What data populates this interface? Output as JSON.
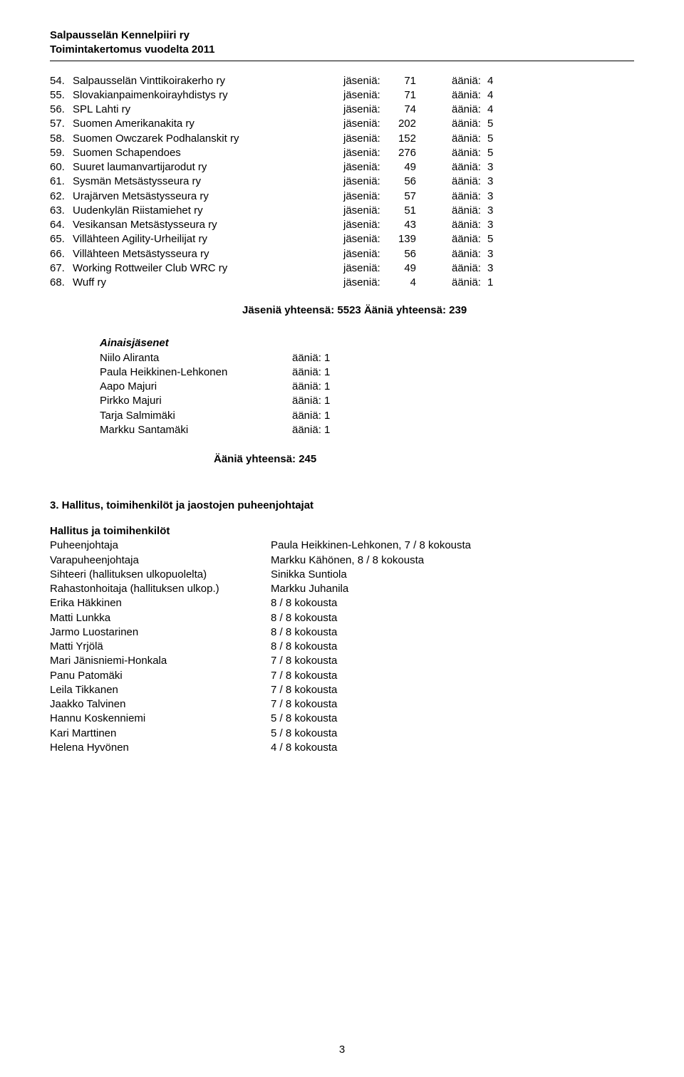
{
  "header": {
    "line1": "Salpausselän Kennelpiiri ry",
    "line2": "Toimintakertomus vuodelta 2011"
  },
  "labels": {
    "jasenia": "jäseniä:",
    "aania": "ääniä:"
  },
  "clubs": [
    {
      "num": "54.",
      "name": "Salpausselän Vinttikoirakerho ry",
      "jas": "71",
      "aan": "4"
    },
    {
      "num": "55.",
      "name": "Slovakianpaimenkoirayhdistys ry",
      "jas": "71",
      "aan": "4"
    },
    {
      "num": "56.",
      "name": "SPL Lahti ry",
      "jas": "74",
      "aan": "4"
    },
    {
      "num": "57.",
      "name": "Suomen Amerikanakita ry",
      "jas": "202",
      "aan": "5"
    },
    {
      "num": "58.",
      "name": "Suomen Owczarek Podhalanskit ry",
      "jas": "152",
      "aan": "5"
    },
    {
      "num": "59.",
      "name": "Suomen Schapendoes",
      "jas": "276",
      "aan": "5"
    },
    {
      "num": "60.",
      "name": "Suuret laumanvartijarodut ry",
      "jas": "49",
      "aan": "3"
    },
    {
      "num": "61.",
      "name": "Sysmän Metsästysseura ry",
      "jas": "56",
      "aan": "3"
    },
    {
      "num": "62.",
      "name": "Urajärven Metsästysseura ry",
      "jas": "57",
      "aan": "3"
    },
    {
      "num": "63.",
      "name": "Uudenkylän Riistamiehet ry",
      "jas": "51",
      "aan": "3"
    },
    {
      "num": "64.",
      "name": "Vesikansan Metsästysseura ry",
      "jas": "43",
      "aan": "3"
    },
    {
      "num": "65.",
      "name": "Villähteen Agility-Urheilijat ry",
      "jas": "139",
      "aan": "5"
    },
    {
      "num": "66.",
      "name": "Villähteen Metsästysseura ry",
      "jas": "56",
      "aan": "3"
    },
    {
      "num": "67.",
      "name": "Working Rottweiler Club WRC ry",
      "jas": "49",
      "aan": "3"
    },
    {
      "num": "68.",
      "name": "Wuff ry",
      "jas": "4",
      "aan": "1"
    }
  ],
  "totals_line": "Jäseniä yhteensä: 5523  Ääniä yhteensä: 239",
  "permanent_members": {
    "title": "Ainaisjäsenet",
    "rows": [
      {
        "name": "Niilo Aliranta",
        "votes": "ääniä: 1"
      },
      {
        "name": "Paula Heikkinen-Lehkonen",
        "votes": "ääniä: 1"
      },
      {
        "name": "Aapo Majuri",
        "votes": "ääniä: 1"
      },
      {
        "name": "Pirkko Majuri",
        "votes": "ääniä: 1"
      },
      {
        "name": "Tarja Salmimäki",
        "votes": "ääniä: 1"
      },
      {
        "name": "Markku Santamäki",
        "votes": "ääniä: 1"
      }
    ]
  },
  "votes_total": "Ääniä yhteensä: 245",
  "section3": {
    "heading": "3. Hallitus, toimihenkilöt ja jaostojen puheenjohtajat",
    "subheading": "Hallitus ja toimihenkilöt",
    "rows": [
      {
        "role": "Puheenjohtaja",
        "val": "Paula Heikkinen-Lehkonen, 7 / 8 kokousta"
      },
      {
        "role": "Varapuheenjohtaja",
        "val": "Markku Kähönen, 8 / 8 kokousta"
      },
      {
        "role": "Sihteeri (hallituksen ulkopuolelta)",
        "val": "Sinikka Suntiola"
      },
      {
        "role": "Rahastonhoitaja (hallituksen ulkop.)",
        "val": "Markku Juhanila"
      },
      {
        "role": "Erika Häkkinen",
        "val": "8 / 8 kokousta"
      },
      {
        "role": "Matti Lunkka",
        "val": "8 / 8 kokousta"
      },
      {
        "role": "Jarmo Luostarinen",
        "val": "8 / 8 kokousta"
      },
      {
        "role": "Matti Yrjölä",
        "val": "8 / 8 kokousta"
      },
      {
        "role": "Mari Jänisniemi-Honkala",
        "val": "7 / 8 kokousta"
      },
      {
        "role": "Panu Patomäki",
        "val": "7 / 8 kokousta"
      },
      {
        "role": "Leila Tikkanen",
        "val": "7 / 8 kokousta"
      },
      {
        "role": "Jaakko Talvinen",
        "val": "7 / 8 kokousta"
      },
      {
        "role": "Hannu Koskenniemi",
        "val": "5 / 8 kokousta"
      },
      {
        "role": "Kari Marttinen",
        "val": "5 / 8 kokousta"
      },
      {
        "role": "Helena Hyvönen",
        "val": "4 / 8 kokousta"
      }
    ]
  },
  "page_number": "3"
}
